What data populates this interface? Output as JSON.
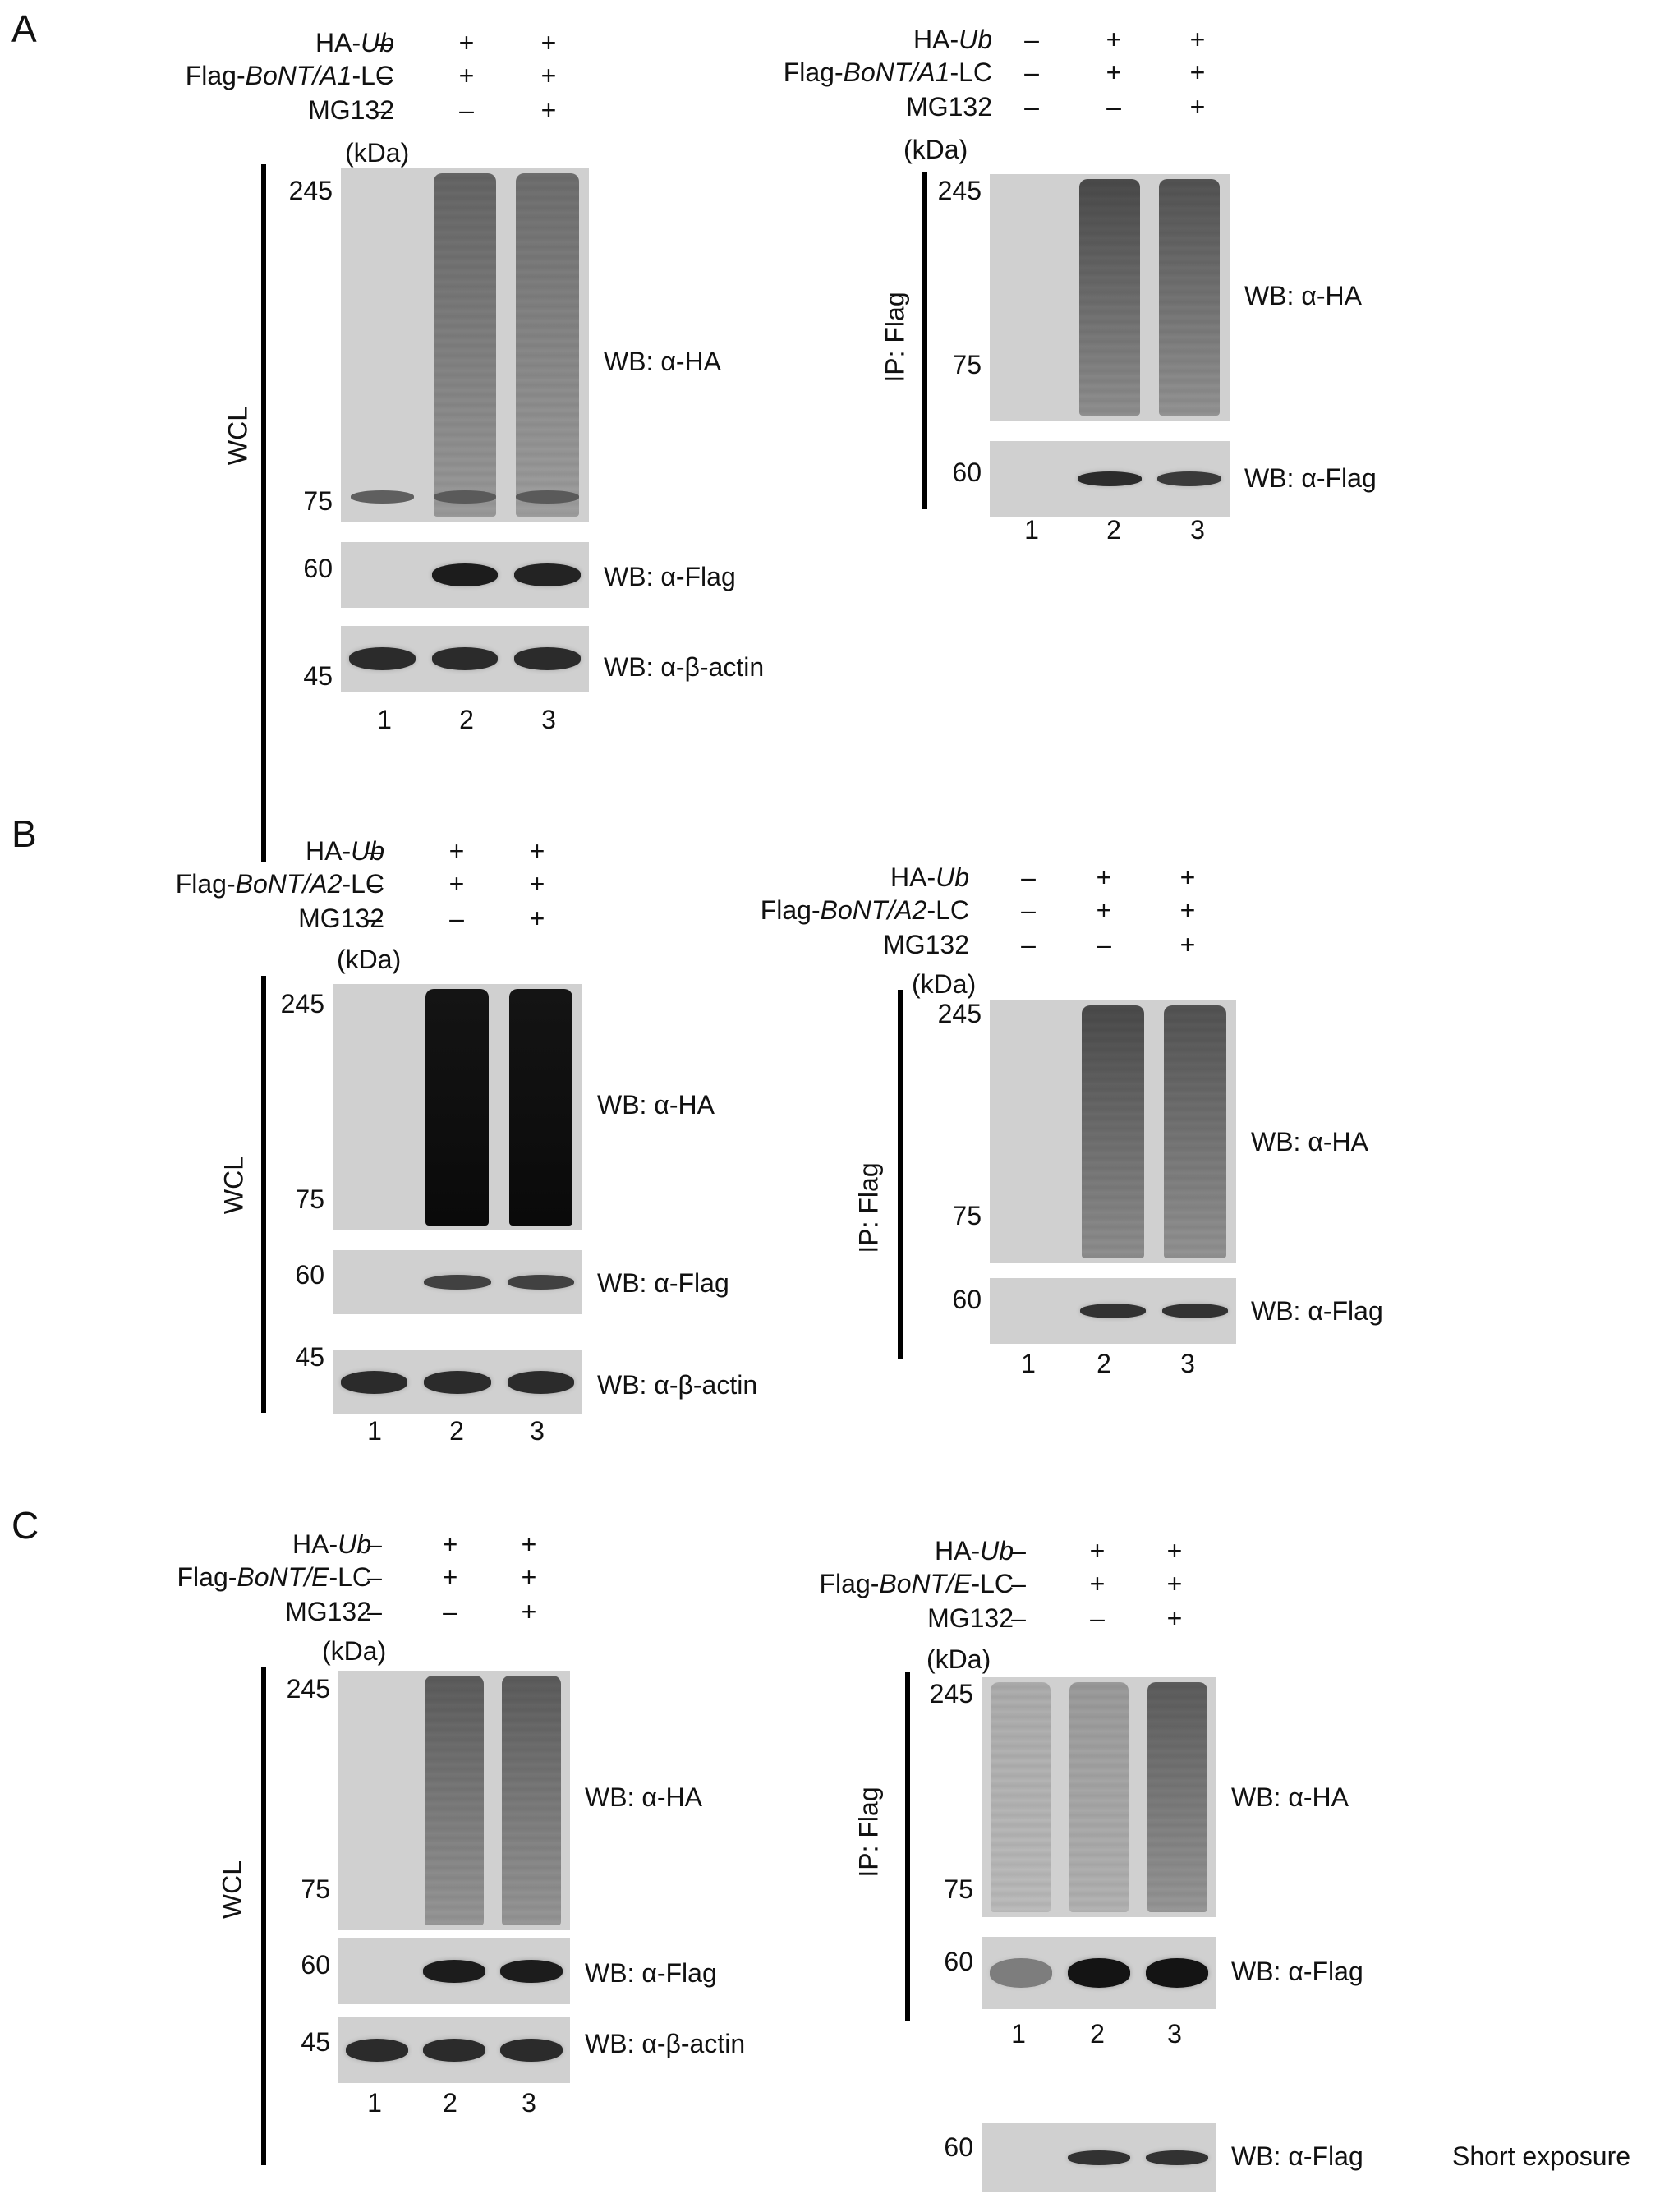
{
  "panels": [
    {
      "letter": "A",
      "left": {
        "rows": [
          {
            "label": "HA-",
            "italic": "Ub",
            "suffix": "",
            "signs": [
              "–",
              "+",
              "+"
            ]
          },
          {
            "label": "Flag-",
            "italic": "BoNT/A1",
            "suffix": "-LC",
            "signs": [
              "–",
              "+",
              "+"
            ]
          },
          {
            "label": "MG132",
            "italic": "",
            "suffix": "",
            "signs": [
              "–",
              "–",
              "+"
            ]
          }
        ],
        "unit": "(kDa)",
        "side_label": "WCL",
        "blots": [
          {
            "wb": "WB: α-HA",
            "markers": [
              "245",
              "75"
            ]
          },
          {
            "wb": "WB: α-Flag",
            "markers": [
              "60"
            ]
          },
          {
            "wb": "WB: α-β-actin",
            "markers": [
              "45"
            ]
          }
        ],
        "lanes": [
          "1",
          "2",
          "3"
        ]
      },
      "right": {
        "rows": [
          {
            "label": "HA-",
            "italic": "Ub",
            "suffix": "",
            "signs": [
              "–",
              "+",
              "+"
            ]
          },
          {
            "label": "Flag-",
            "italic": "BoNT/A1",
            "suffix": "-LC",
            "signs": [
              "–",
              "+",
              "+"
            ]
          },
          {
            "label": "MG132",
            "italic": "",
            "suffix": "",
            "signs": [
              "–",
              "–",
              "+"
            ]
          }
        ],
        "unit": "(kDa)",
        "side_label": "IP: Flag",
        "blots": [
          {
            "wb": "WB: α-HA",
            "markers": [
              "245",
              "75"
            ]
          },
          {
            "wb": "WB: α-Flag",
            "markers": [
              "60"
            ]
          }
        ],
        "lanes": [
          "1",
          "2",
          "3"
        ]
      }
    },
    {
      "letter": "B",
      "left": {
        "rows": [
          {
            "label": "HA-",
            "italic": "Ub",
            "suffix": "",
            "signs": [
              "–",
              "+",
              "+"
            ]
          },
          {
            "label": "Flag-",
            "italic": "BoNT/A2",
            "suffix": "-LC",
            "signs": [
              "–",
              "+",
              "+"
            ]
          },
          {
            "label": "MG132",
            "italic": "",
            "suffix": "",
            "signs": [
              "–",
              "–",
              "+"
            ]
          }
        ],
        "unit": "(kDa)",
        "side_label": "WCL",
        "blots": [
          {
            "wb": "WB: α-HA",
            "markers": [
              "245",
              "75"
            ]
          },
          {
            "wb": "WB: α-Flag",
            "markers": [
              "60"
            ]
          },
          {
            "wb": "WB: α-β-actin",
            "markers": [
              "45"
            ]
          }
        ],
        "lanes": [
          "1",
          "2",
          "3"
        ]
      },
      "right": {
        "rows": [
          {
            "label": "HA-",
            "italic": "Ub",
            "suffix": "",
            "signs": [
              "–",
              "+",
              "+"
            ]
          },
          {
            "label": "Flag-",
            "italic": "BoNT/A2",
            "suffix": "-LC",
            "signs": [
              "–",
              "+",
              "+"
            ]
          },
          {
            "label": "MG132",
            "italic": "",
            "suffix": "",
            "signs": [
              "–",
              "–",
              "+"
            ]
          }
        ],
        "unit": "(kDa)",
        "side_label": "IP: Flag",
        "blots": [
          {
            "wb": "WB: α-HA",
            "markers": [
              "245",
              "75"
            ]
          },
          {
            "wb": "WB: α-Flag",
            "markers": [
              "60"
            ]
          }
        ],
        "lanes": [
          "1",
          "2",
          "3"
        ]
      }
    },
    {
      "letter": "C",
      "left": {
        "rows": [
          {
            "label": "HA-",
            "italic": "Ub",
            "suffix": "",
            "signs": [
              "–",
              "+",
              "+"
            ]
          },
          {
            "label": "Flag-",
            "italic": "BoNT/E",
            "suffix": "-LC",
            "signs": [
              "–",
              "+",
              "+"
            ]
          },
          {
            "label": "MG132",
            "italic": "",
            "suffix": "",
            "signs": [
              "–",
              "–",
              "+"
            ]
          }
        ],
        "unit": "(kDa)",
        "side_label": "WCL",
        "blots": [
          {
            "wb": "WB: α-HA",
            "markers": [
              "245",
              "75"
            ]
          },
          {
            "wb": "WB: α-Flag",
            "markers": [
              "60"
            ]
          },
          {
            "wb": "WB: α-β-actin",
            "markers": [
              "45"
            ]
          }
        ],
        "lanes": [
          "1",
          "2",
          "3"
        ]
      },
      "right": {
        "rows": [
          {
            "label": "HA-",
            "italic": "Ub",
            "suffix": "",
            "signs": [
              "–",
              "+",
              "+"
            ]
          },
          {
            "label": "Flag-",
            "italic": "BoNT/E",
            "suffix": "-LC",
            "signs": [
              "–",
              "+",
              "+"
            ]
          },
          {
            "label": "MG132",
            "italic": "",
            "suffix": "",
            "signs": [
              "–",
              "–",
              "+"
            ]
          }
        ],
        "unit": "(kDa)",
        "side_label": "IP: Flag",
        "blots": [
          {
            "wb": "WB: α-HA",
            "markers": [
              "245",
              "75"
            ]
          },
          {
            "wb": "WB: α-Flag",
            "markers": [
              "60"
            ]
          }
        ],
        "lanes": [
          "1",
          "2",
          "3"
        ],
        "extra_blot": {
          "wb": "WB: α-Flag",
          "markers": [
            "60"
          ],
          "note": "Short exposure"
        }
      }
    }
  ]
}
